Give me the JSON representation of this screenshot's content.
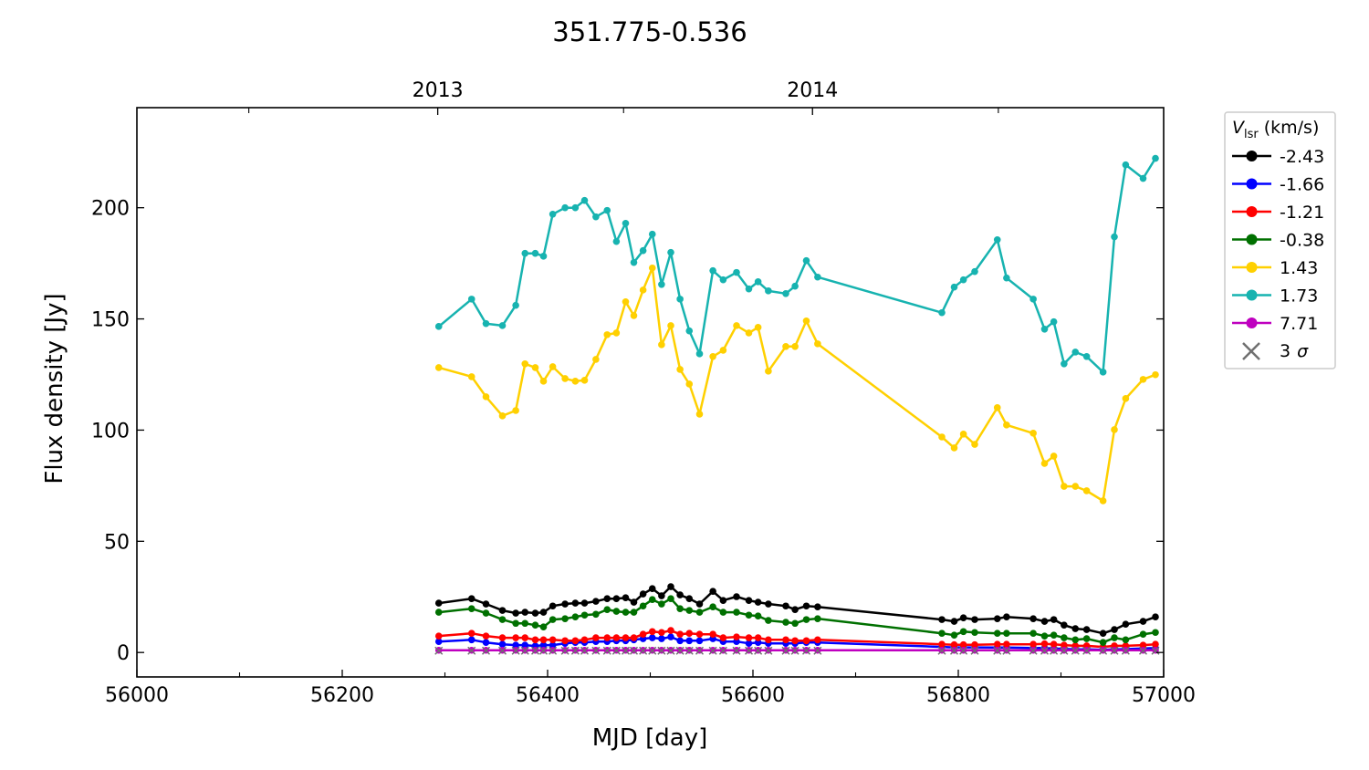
{
  "chart_data": {
    "type": "line",
    "title": "351.775-0.536",
    "xlabel": "MJD [day]",
    "ylabel": "Flux density [Jy]",
    "xlim": [
      56000,
      57000
    ],
    "ylim": [
      -11,
      245
    ],
    "grid": false,
    "x_ticks": [
      "56000",
      "56200",
      "56400",
      "56600",
      "56800",
      "57000"
    ],
    "x_tick_values": [
      56000,
      56200,
      56400,
      56600,
      56800,
      57000
    ],
    "y_ticks": [
      "0",
      "50",
      "100",
      "150",
      "200"
    ],
    "y_tick_values": [
      0,
      50,
      100,
      150,
      200
    ],
    "top_axis": {
      "labels": [
        "2013",
        "2014"
      ],
      "label_mjd": [
        56293,
        56658
      ],
      "minor_mjd": [
        56109,
        56474,
        56839
      ]
    },
    "legend": {
      "title_main": "V",
      "title_sub": "lsr",
      "title_unit": "(km/s)",
      "placement": "outside-right",
      "sigma_label": "3 σ",
      "sigma_num": "3",
      "sigma_sym": "σ"
    },
    "x": [
      56294,
      56326,
      56340,
      56356,
      56369,
      56378,
      56388,
      56396,
      56405,
      56417,
      56427,
      56436,
      56447,
      56458,
      56467,
      56476,
      56484,
      56493,
      56502,
      56511,
      56520,
      56529,
      56538,
      56548,
      56561,
      56571,
      56584,
      56596,
      56605,
      56615,
      56632,
      56641,
      56652,
      56663,
      56784,
      56796,
      56805,
      56816,
      56838,
      56847,
      56873,
      56884,
      56893,
      56903,
      56914,
      56925,
      56941,
      56952,
      56963,
      56980,
      56992
    ],
    "series": [
      {
        "name": "-2.43",
        "color": "#000000",
        "values": [
          22.2,
          24.2,
          21.8,
          18.9,
          17.7,
          18.1,
          17.7,
          18.1,
          20.9,
          21.8,
          22.2,
          22.2,
          23.0,
          24.2,
          24.2,
          24.6,
          22.6,
          26.3,
          28.7,
          25.5,
          29.6,
          25.9,
          24.2,
          21.8,
          27.5,
          23.4,
          25.1,
          23.4,
          22.6,
          21.8,
          20.9,
          19.3,
          20.9,
          20.5,
          14.8,
          14.0,
          15.6,
          14.8,
          15.2,
          16.0,
          15.2,
          14.0,
          14.8,
          12.3,
          10.7,
          10.3,
          8.6,
          10.3,
          12.7,
          14.0,
          16.0
        ]
      },
      {
        "name": "-1.66",
        "color": "#0000ff",
        "values": [
          4.9,
          5.7,
          4.5,
          3.7,
          3.3,
          3.3,
          2.9,
          3.3,
          3.3,
          4.1,
          4.5,
          4.5,
          4.9,
          4.9,
          5.3,
          5.3,
          5.7,
          6.2,
          6.6,
          6.2,
          7.0,
          5.3,
          5.3,
          5.3,
          6.2,
          4.9,
          4.9,
          4.1,
          4.5,
          4.1,
          4.1,
          4.1,
          4.5,
          4.5,
          2.5,
          2.3,
          2.3,
          2.3,
          2.2,
          2.2,
          2.0,
          2.0,
          1.8,
          1.6,
          1.4,
          1.4,
          1.2,
          1.4,
          1.5,
          1.8,
          2.0
        ]
      },
      {
        "name": "-1.21",
        "color": "#ff0000",
        "values": [
          7.4,
          8.6,
          7.4,
          6.6,
          6.6,
          6.6,
          5.7,
          5.7,
          5.7,
          5.3,
          5.3,
          5.7,
          6.6,
          6.6,
          6.6,
          6.6,
          6.6,
          8.2,
          9.4,
          9.0,
          9.9,
          8.2,
          8.6,
          8.2,
          8.2,
          6.6,
          7.0,
          6.6,
          6.6,
          5.7,
          5.7,
          5.3,
          5.3,
          5.7,
          3.7,
          3.5,
          3.5,
          3.5,
          3.7,
          3.7,
          3.7,
          3.9,
          3.7,
          3.3,
          3.0,
          3.0,
          2.5,
          3.0,
          3.0,
          3.3,
          3.7
        ]
      },
      {
        "name": "-0.38",
        "color": "#007000",
        "values": [
          18.1,
          19.7,
          17.7,
          14.8,
          13.1,
          13.1,
          12.3,
          11.5,
          14.8,
          15.2,
          16.0,
          16.8,
          17.2,
          19.3,
          18.5,
          18.1,
          18.1,
          20.9,
          23.8,
          21.8,
          24.2,
          19.7,
          18.9,
          18.1,
          20.5,
          18.1,
          18.1,
          16.8,
          16.4,
          14.4,
          13.6,
          13.1,
          14.8,
          15.2,
          8.6,
          7.8,
          9.4,
          9.0,
          8.6,
          8.6,
          8.6,
          7.4,
          7.8,
          6.6,
          5.7,
          6.2,
          4.5,
          6.6,
          5.7,
          8.2,
          9.0
        ]
      },
      {
        "name": "1.43",
        "color": "#ffd000",
        "values": [
          128.1,
          124.0,
          115.0,
          106.4,
          108.8,
          129.8,
          128.1,
          122.0,
          128.5,
          123.2,
          122.0,
          122.4,
          131.8,
          142.9,
          143.7,
          157.7,
          151.5,
          163.0,
          172.9,
          138.4,
          147.0,
          127.3,
          120.7,
          107.2,
          133.1,
          135.9,
          147.0,
          143.7,
          146.2,
          126.5,
          137.6,
          137.6,
          149.1,
          138.8,
          96.9,
          92.0,
          98.2,
          93.6,
          110.1,
          102.3,
          98.6,
          85.0,
          88.3,
          74.7,
          74.7,
          72.7,
          68.2,
          100.2,
          114.2,
          122.8,
          124.9
        ]
      },
      {
        "name": "1.73",
        "color": "#17b3b0",
        "values": [
          146.6,
          158.9,
          147.9,
          147.0,
          156.1,
          179.5,
          179.5,
          178.2,
          197.1,
          200.0,
          200.0,
          203.3,
          195.9,
          198.8,
          184.8,
          193.0,
          175.4,
          180.7,
          188.1,
          165.5,
          179.9,
          158.9,
          144.6,
          134.3,
          171.7,
          167.6,
          170.9,
          163.5,
          166.7,
          162.6,
          161.4,
          164.7,
          176.2,
          168.8,
          152.8,
          164.3,
          167.6,
          171.3,
          185.6,
          168.4,
          158.9,
          145.4,
          148.7,
          129.8,
          135.1,
          133.1,
          126.1,
          186.9,
          219.3,
          213.2,
          222.2
        ]
      },
      {
        "name": "7.71",
        "color": "#bf00bf",
        "values": [
          1.0,
          1.0,
          1.0,
          1.0,
          1.0,
          1.0,
          1.0,
          1.0,
          1.0,
          1.0,
          1.0,
          1.0,
          1.0,
          1.0,
          1.0,
          1.0,
          1.0,
          1.0,
          1.0,
          1.0,
          1.0,
          1.0,
          1.0,
          1.0,
          1.0,
          1.0,
          1.0,
          1.0,
          1.0,
          1.0,
          1.0,
          1.0,
          1.0,
          1.0,
          1.0,
          1.0,
          1.0,
          1.0,
          1.0,
          1.0,
          1.0,
          1.0,
          1.0,
          1.0,
          1.0,
          1.0,
          1.0,
          1.0,
          1.0,
          1.0,
          1.0
        ]
      }
    ],
    "sigma": {
      "name": "3 σ",
      "color": "#707070",
      "value": 0.8
    }
  }
}
